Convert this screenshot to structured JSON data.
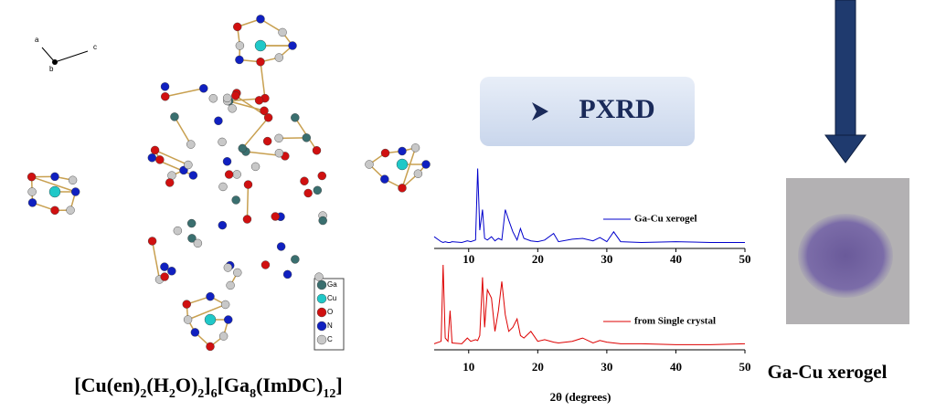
{
  "structure": {
    "axes": [
      "a",
      "b",
      "c"
    ],
    "legend": [
      "Ga",
      "Cu",
      "O",
      "N",
      "C"
    ],
    "formula": [
      "[Cu(en)",
      "2",
      "(H",
      "2",
      "O)",
      "2",
      "]",
      "6",
      "[Ga",
      "8",
      "(ImDC)",
      "12",
      "]"
    ]
  },
  "banner": "PXRD",
  "photo_caption": "Ga-Cu xerogel",
  "chart_data": [
    {
      "type": "line",
      "x": [
        5,
        6,
        6.3,
        6.6,
        7,
        7.3,
        7.6,
        9,
        9.8,
        10.3,
        11,
        11.3,
        11.6,
        12,
        12.3,
        12.7,
        13.3,
        13.8,
        14.3,
        14.8,
        15.3,
        15.8,
        16.4,
        17,
        17.5,
        18,
        19,
        20,
        21,
        22.3,
        23,
        25,
        26.5,
        28,
        29,
        30,
        31,
        32,
        35,
        40,
        45,
        50
      ],
      "series": [
        {
          "name": "Ga-Cu xerogel",
          "color": "#0000cc",
          "values": [
            12,
            6,
            5,
            6,
            5,
            5,
            6,
            5,
            7,
            6,
            8,
            95,
            20,
            45,
            10,
            8,
            12,
            7,
            10,
            8,
            45,
            32,
            18,
            8,
            22,
            10,
            7,
            6,
            8,
            16,
            6,
            9,
            10,
            7,
            11,
            6,
            18,
            6,
            5,
            6,
            5,
            5
          ]
        }
      ],
      "xlim": [
        5,
        50
      ],
      "xticks": [
        10,
        20,
        30,
        40,
        50
      ],
      "ylim": [
        0,
        100
      ]
    },
    {
      "type": "line",
      "x": [
        5,
        6,
        6.3,
        6.6,
        7,
        7.3,
        7.6,
        9,
        9.8,
        10.3,
        11,
        11.3,
        11.6,
        12,
        12.3,
        12.7,
        13.3,
        13.8,
        14.3,
        14.8,
        15.3,
        15.8,
        16.4,
        17,
        17.5,
        18,
        19,
        20,
        21,
        22.3,
        23,
        25,
        26.5,
        28,
        29,
        30,
        31,
        32,
        35,
        40,
        45,
        50
      ],
      "series": [
        {
          "name": "from Single crystal",
          "color": "#dd0000",
          "values": [
            5,
            8,
            100,
            12,
            8,
            45,
            6,
            5,
            12,
            8,
            10,
            9,
            15,
            85,
            25,
            70,
            60,
            20,
            45,
            80,
            40,
            20,
            25,
            35,
            15,
            12,
            20,
            8,
            10,
            7,
            6,
            8,
            12,
            6,
            9,
            7,
            6,
            5,
            5,
            4,
            4,
            5
          ]
        }
      ],
      "xlim": [
        5,
        50
      ],
      "xticks": [
        10,
        20,
        30,
        40,
        50
      ],
      "ylim": [
        0,
        100
      ],
      "xlabel": "2θ (degrees)"
    }
  ]
}
